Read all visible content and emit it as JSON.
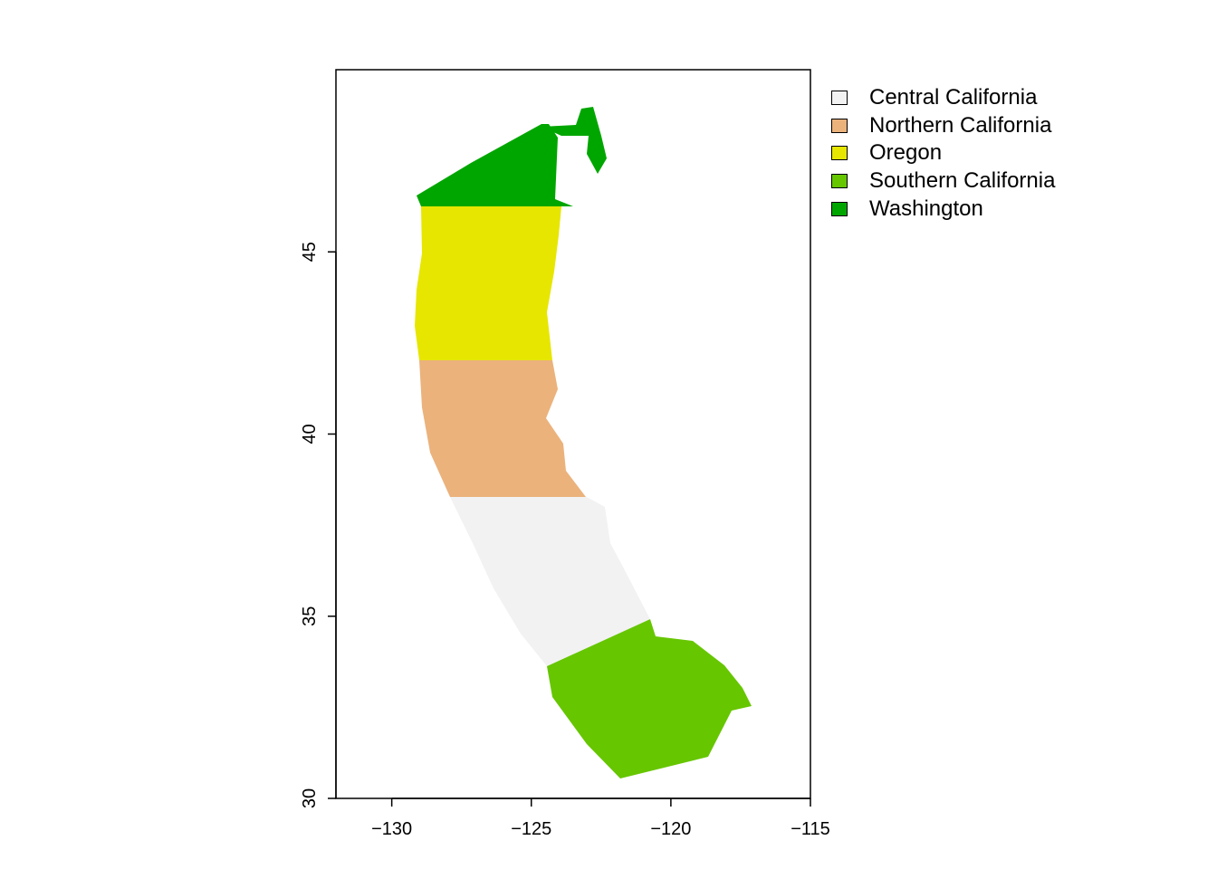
{
  "map": {
    "x_axis": {
      "min": -132,
      "max": -115,
      "ticks": [
        -130,
        -125,
        -120,
        -115
      ]
    },
    "y_axis": {
      "min": 30,
      "max": 50,
      "ticks": [
        30,
        35,
        40,
        45
      ]
    }
  },
  "legend": {
    "items": [
      {
        "label": "Central California",
        "color": "#f2f2f2"
      },
      {
        "label": "Northern California",
        "color": "#ebb27c"
      },
      {
        "label": "Oregon",
        "color": "#e6e600"
      },
      {
        "label": "Southern California",
        "color": "#66c600"
      },
      {
        "label": "Washington",
        "color": "#00a600"
      }
    ]
  },
  "regions": [
    {
      "name": "Washington",
      "lat_range": [
        46.25,
        48.9
      ]
    },
    {
      "name": "Oregon",
      "lat_range": [
        42.0,
        46.25
      ]
    },
    {
      "name": "Northern California",
      "lat_range": [
        38.3,
        42.0
      ]
    },
    {
      "name": "Central California",
      "lat_range": [
        34.6,
        38.3
      ]
    },
    {
      "name": "Southern California",
      "lat_range": [
        30.5,
        34.6
      ]
    }
  ]
}
